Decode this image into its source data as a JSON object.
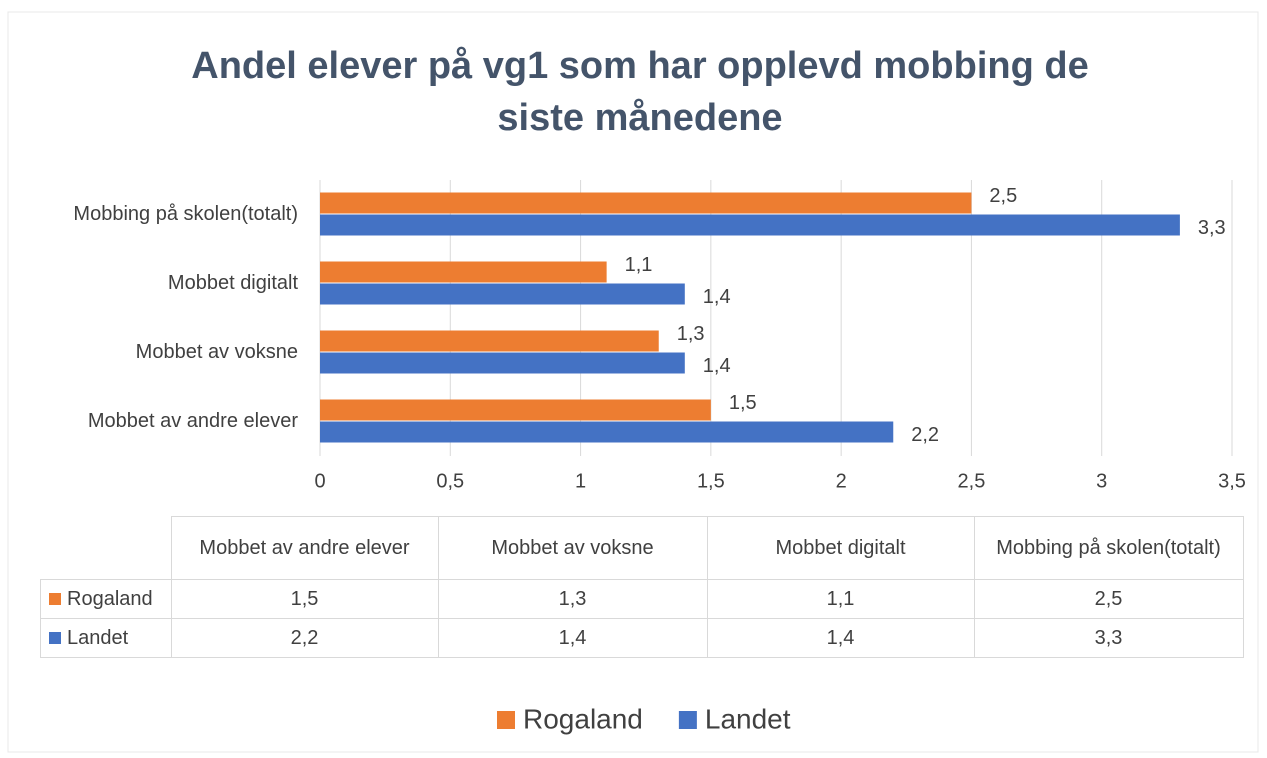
{
  "chart_data": {
    "type": "barh",
    "title": "Andel elever på vg1 som har opplevd mobbing de siste månedene",
    "categories": [
      "Mobbet av andre elever",
      "Mobbet av voksne",
      "Mobbet digitalt",
      "Mobbing på skolen(totalt)"
    ],
    "series": [
      {
        "name": "Rogaland",
        "color": "#ed7d31",
        "values": [
          1.5,
          1.3,
          1.1,
          2.5
        ],
        "value_labels": [
          "1,5",
          "1,3",
          "1,1",
          "2,5"
        ]
      },
      {
        "name": "Landet",
        "color": "#4472c4",
        "values": [
          2.2,
          1.4,
          1.4,
          3.3
        ],
        "value_labels": [
          "2,2",
          "1,4",
          "1,4",
          "3,3"
        ]
      }
    ],
    "xlim": [
      0,
      3.5
    ],
    "xticks": [
      0,
      {
        "value": 0.5,
        "label": "0,5"
      },
      1,
      {
        "value": 1.5,
        "label": "1,5"
      },
      2,
      {
        "value": 2.5,
        "label": "2,5"
      },
      3,
      {
        "value": 3.5,
        "label": "3,5"
      }
    ],
    "grid": true,
    "legend": "bottom",
    "data_table": true
  }
}
